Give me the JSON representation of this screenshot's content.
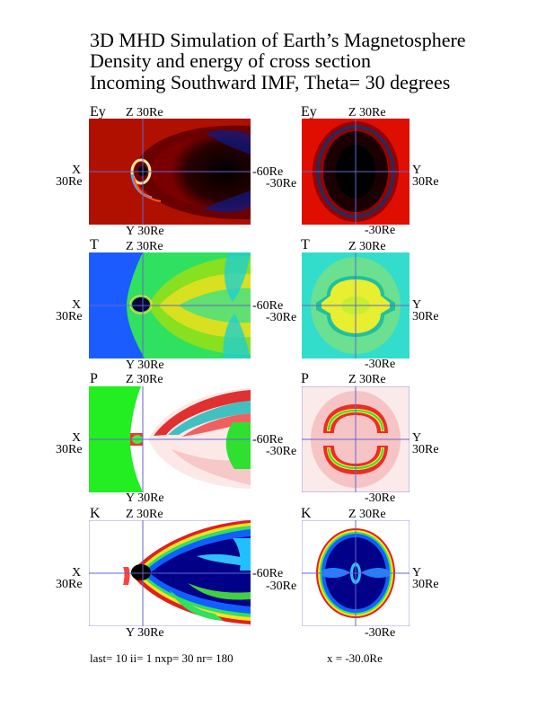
{
  "title": {
    "line1": "3D MHD Simulation of Earth’s Magnetosphere",
    "line2": "Density and energy of cross section",
    "line3": "Incoming Southward IMF, Theta=   30 degrees"
  },
  "rows": [
    {
      "var": "Ey",
      "z_label": "Z  30Re",
      "x_label": "X",
      "x_val": "30Re",
      "left_end": "-60Re",
      "left_bottom": "Y  30Re",
      "right_end": "-30Re",
      "y_label": "Y",
      "y_val": "30Re",
      "right_bottom": "-30Re"
    },
    {
      "var": "T",
      "z_label": "Z  30Re",
      "x_label": "X",
      "x_val": "30Re",
      "left_end": "-60Re",
      "left_bottom": "Y  30Re",
      "right_end": "-30Re",
      "y_label": "Y",
      "y_val": "30Re",
      "right_bottom": "-30Re"
    },
    {
      "var": "P",
      "z_label": "Z  30Re",
      "x_label": "X",
      "x_val": "30Re",
      "left_end": "-60Re",
      "left_bottom": "Y  30Re",
      "right_end": "-30Re",
      "y_label": "Y",
      "y_val": "30Re",
      "right_bottom": "-30Re"
    },
    {
      "var": "K",
      "z_label": "Z  30Re",
      "x_label": "X",
      "x_val": "30Re",
      "left_end": "-60Re",
      "left_bottom": "Y  30Re",
      "right_end": "-30Re",
      "y_label": "Y",
      "y_val": "30Re",
      "right_bottom": "-30Re"
    }
  ],
  "footer": {
    "params": "last=  10  ii=   1  nxp=  30  nr= 180",
    "position": "x =  -30.0Re"
  },
  "colors": {
    "axis": "#6666cc",
    "red": "#cc1100",
    "blue": "#1a4dff",
    "green": "#22ee22",
    "cyan": "#33ddcc",
    "black": "#000000"
  }
}
